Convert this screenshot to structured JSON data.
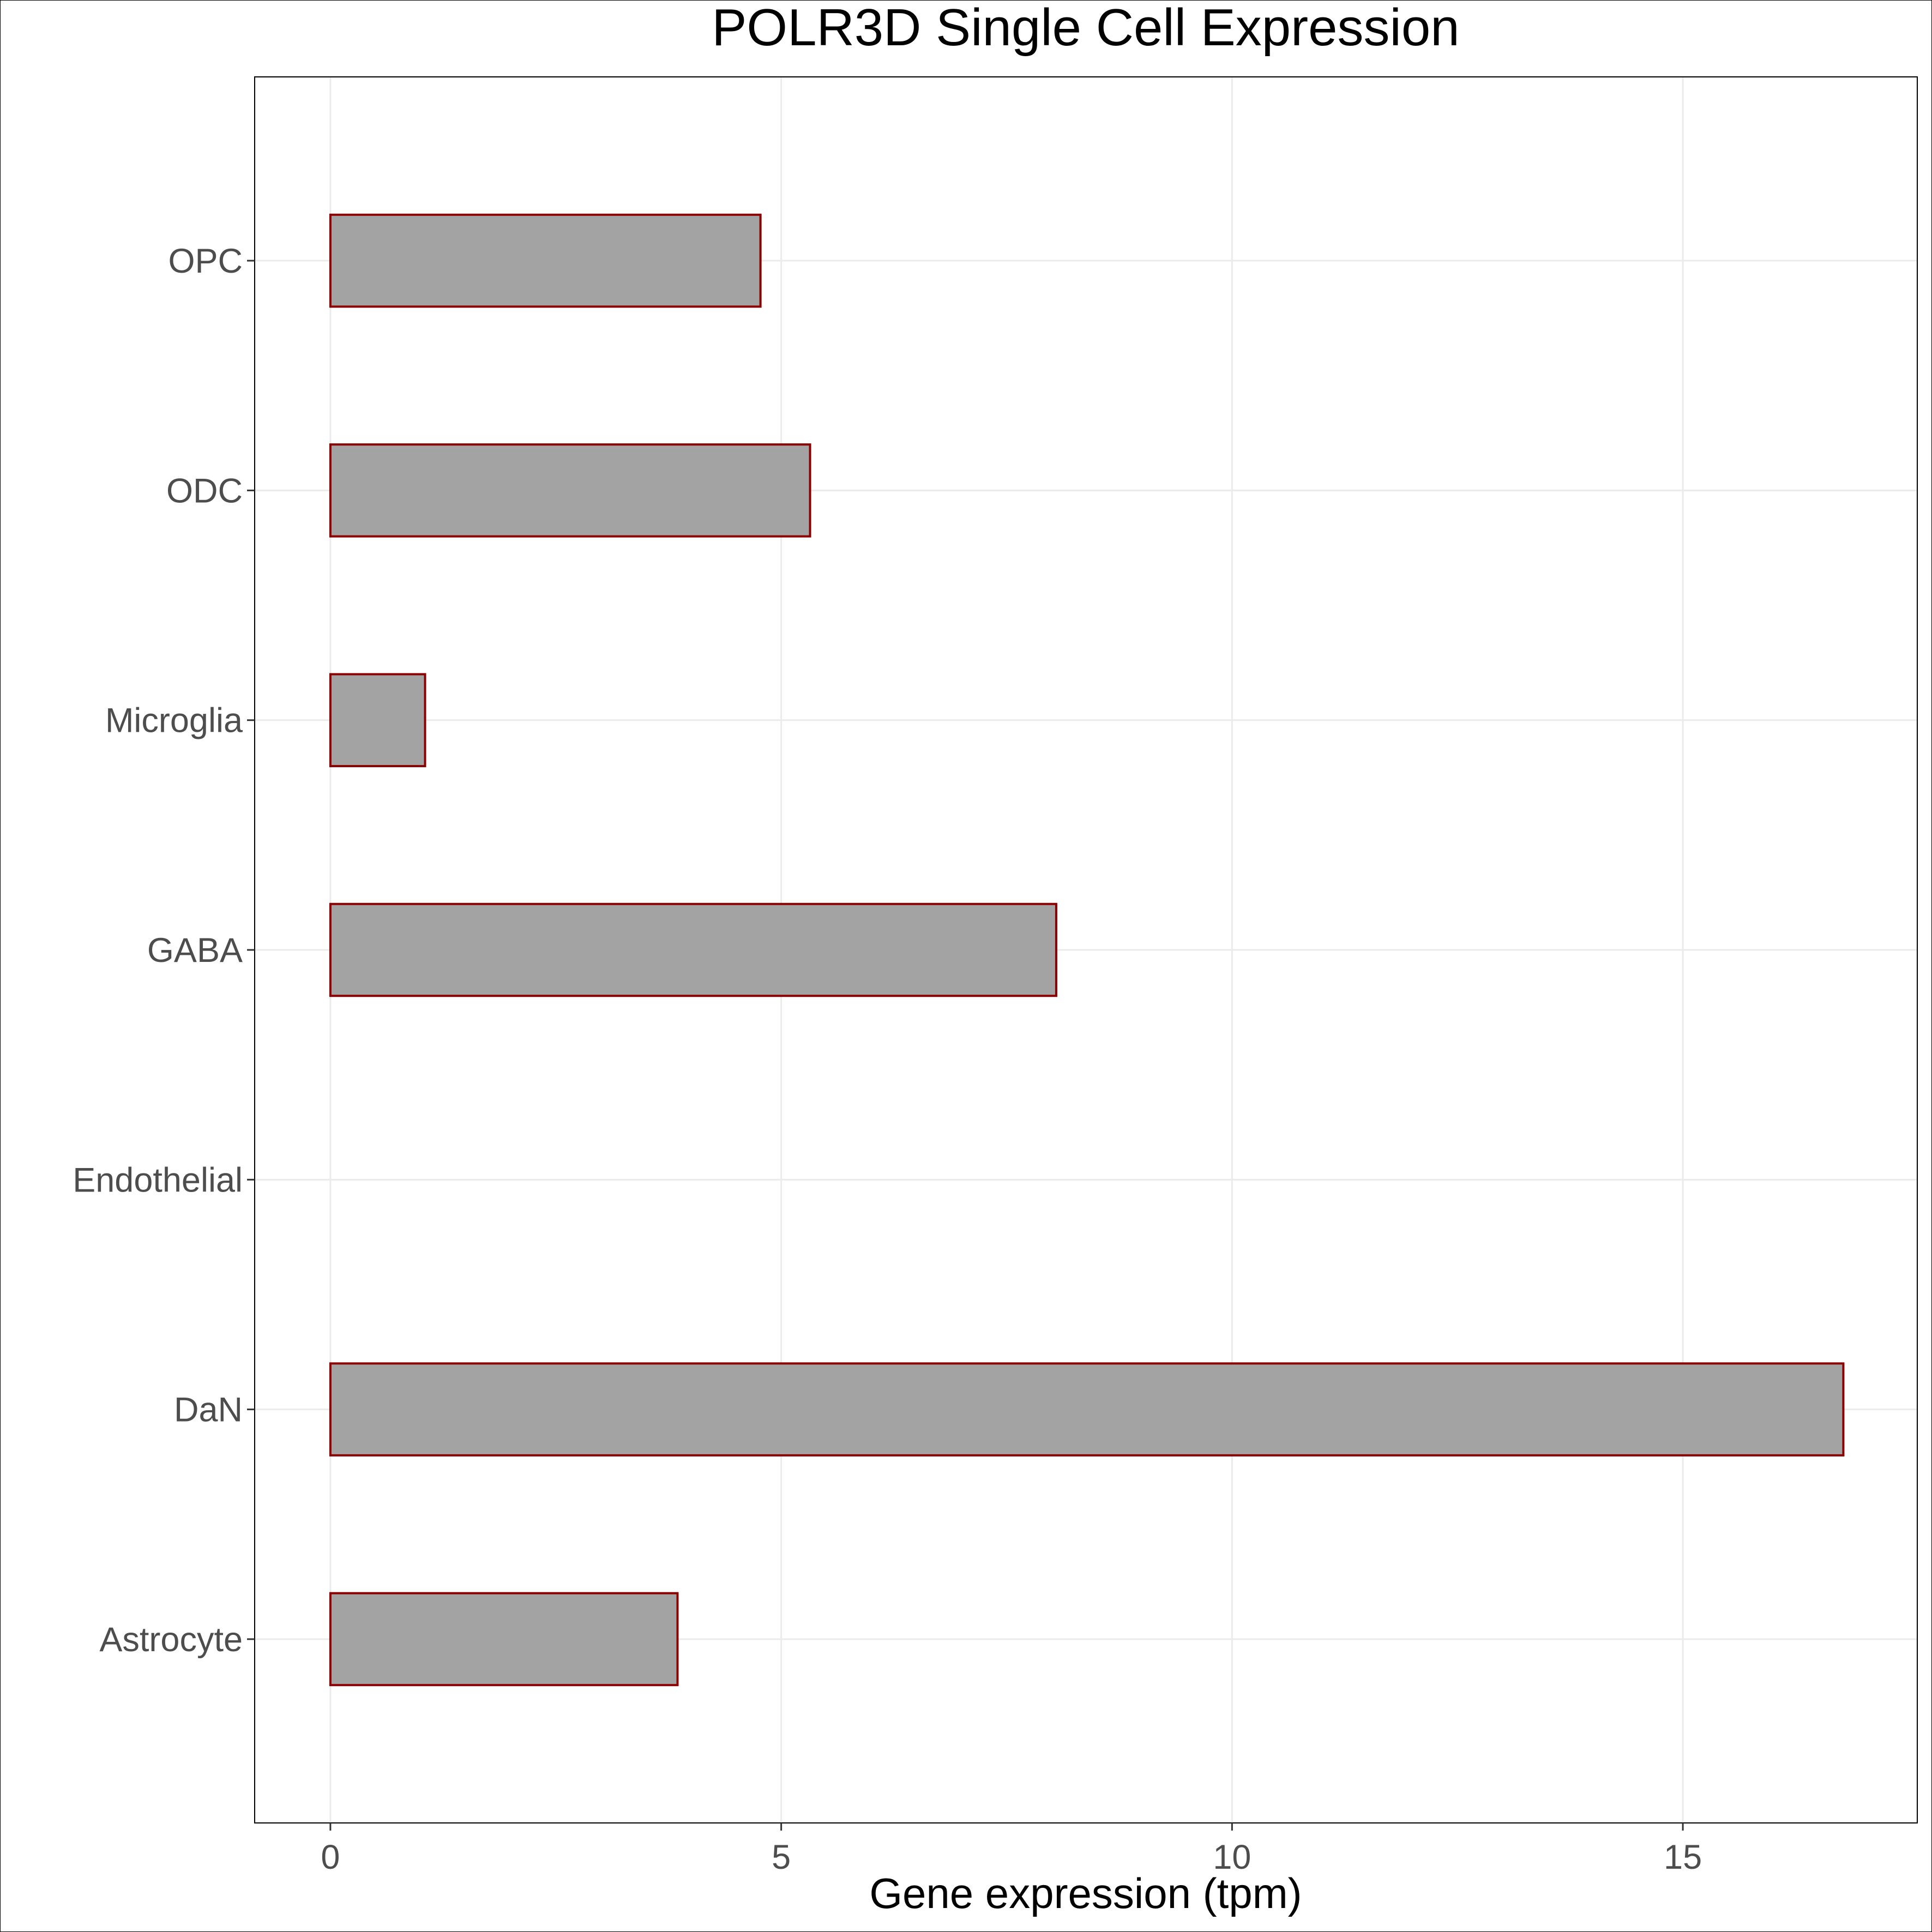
{
  "chart_data": {
    "type": "bar",
    "orientation": "horizontal",
    "title": "POLR3D Single Cell Expression",
    "xlabel": "Gene expression (tpm)",
    "ylabel": "",
    "categories": [
      "Astrocyte",
      "DaN",
      "Endothelial",
      "GABA",
      "Microglia",
      "ODC",
      "OPC"
    ],
    "values": [
      3.85,
      16.78,
      0.0,
      8.05,
      1.05,
      5.32,
      4.77
    ],
    "xlim": [
      -0.84,
      17.6
    ],
    "xticks": [
      0,
      5,
      10,
      15
    ],
    "xtick_labels": [
      "0",
      "5",
      "10",
      "15"
    ],
    "grid": true,
    "legend": "none",
    "colors": {
      "bar_fill": "#a3a3a3",
      "bar_stroke": "#8b0000",
      "grid": "#ebebeb",
      "panel_border": "#000000",
      "tick_text": "#4d4d4d",
      "title_text": "#000000"
    }
  }
}
